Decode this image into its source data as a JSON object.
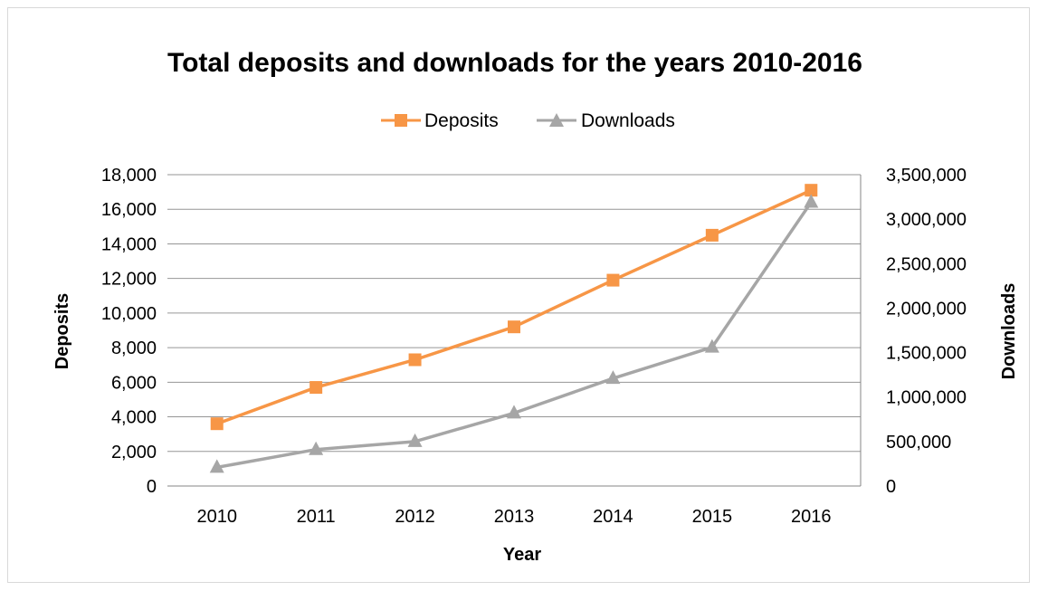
{
  "chart_data": {
    "type": "line",
    "title": "Total deposits and downloads for the years  2010-2016",
    "xlabel": "Year",
    "ylabel": "Deposits",
    "y2label": "Downloads",
    "categories": [
      "2010",
      "2011",
      "2012",
      "2013",
      "2014",
      "2015",
      "2016"
    ],
    "ylim": [
      0,
      18000
    ],
    "y2lim": [
      0,
      3500000
    ],
    "yticks": [
      "0",
      "2,000",
      "4,000",
      "6,000",
      "8,000",
      "10,000",
      "12,000",
      "14,000",
      "16,000",
      "18,000"
    ],
    "y2ticks": [
      "0",
      "500,000",
      "1,000,000",
      "1,500,000",
      "2,000,000",
      "2,500,000",
      "3,000,000",
      "3,500,000"
    ],
    "grid": true,
    "legend_position": "top",
    "series": [
      {
        "name": "Deposits",
        "axis": "left",
        "marker": "square",
        "color": "#f79646",
        "values": [
          3600,
          5700,
          7300,
          9200,
          11900,
          14500,
          17100
        ]
      },
      {
        "name": "Downloads",
        "axis": "right",
        "marker": "triangle",
        "color": "#a6a6a6",
        "values": [
          210000,
          410000,
          500000,
          820000,
          1210000,
          1560000,
          3190000
        ]
      }
    ]
  }
}
